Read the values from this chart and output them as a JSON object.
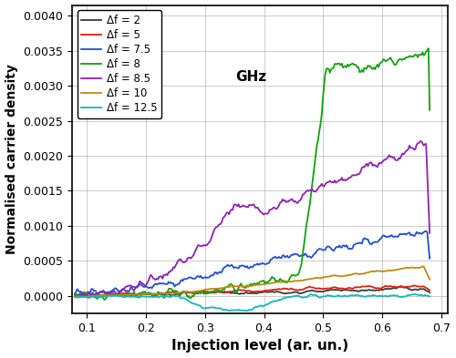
{
  "title": "",
  "xlabel": "Injection level (ar. un.)",
  "ylabel": "Normalised carrier density",
  "xlim": [
    0.075,
    0.71
  ],
  "ylim": [
    -0.00025,
    0.00415
  ],
  "yticks": [
    0.0,
    0.0005,
    0.001,
    0.0015,
    0.002,
    0.0025,
    0.003,
    0.0035,
    0.004
  ],
  "xticks": [
    0.1,
    0.2,
    0.3,
    0.4,
    0.5,
    0.6,
    0.7
  ],
  "legend_entries": [
    {
      "label": "Δf = 2",
      "color": "#3a3a3a"
    },
    {
      "label": "Δf = 5",
      "color": "#dd2010"
    },
    {
      "label": "Δf = 7.5",
      "color": "#2050cc"
    },
    {
      "label": "Δf = 8",
      "color": "#10a010"
    },
    {
      "label": "Δf = 8.5",
      "color": "#9020b0"
    },
    {
      "label": "Δf = 10",
      "color": "#c08810"
    },
    {
      "label": "Δf = 12.5",
      "color": "#10b8b8"
    }
  ],
  "ghz_annotation": "GHz",
  "background_color": "#ffffff",
  "grid_color": "#aaaaaa"
}
